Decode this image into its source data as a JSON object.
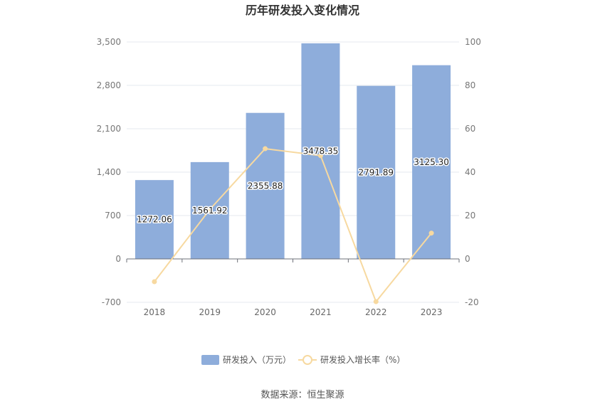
{
  "chart_data": {
    "type": "bar",
    "title": "历年研发投入变化情况",
    "categories": [
      "2018",
      "2019",
      "2020",
      "2021",
      "2022",
      "2023"
    ],
    "series": [
      {
        "name": "研发投入（万元）",
        "type": "bar",
        "axis": "left",
        "color": "#8eaddb",
        "values": [
          1272.06,
          1561.92,
          2355.88,
          3478.35,
          2791.89,
          3125.3
        ],
        "labels": [
          "1272.06",
          "1561.92",
          "2355.88",
          "3478.35",
          "2791.89",
          "3125.30"
        ]
      },
      {
        "name": "研发投入增长率（%）",
        "type": "line",
        "axis": "right",
        "color": "#f7d9a0",
        "values": [
          -10.5,
          22.8,
          50.8,
          47.6,
          -19.7,
          11.9
        ]
      }
    ],
    "y_left": {
      "ylim": [
        -700,
        3500
      ],
      "ticks": [
        "-700",
        "0",
        "700",
        "1,400",
        "2,100",
        "2,800",
        "3,500"
      ]
    },
    "y_right": {
      "ylim": [
        -20,
        100
      ],
      "ticks": [
        "-20",
        "0",
        "20",
        "40",
        "60",
        "80",
        "100"
      ]
    },
    "grid": true,
    "legend_position": "bottom"
  },
  "source": "数据来源：恒生聚源"
}
